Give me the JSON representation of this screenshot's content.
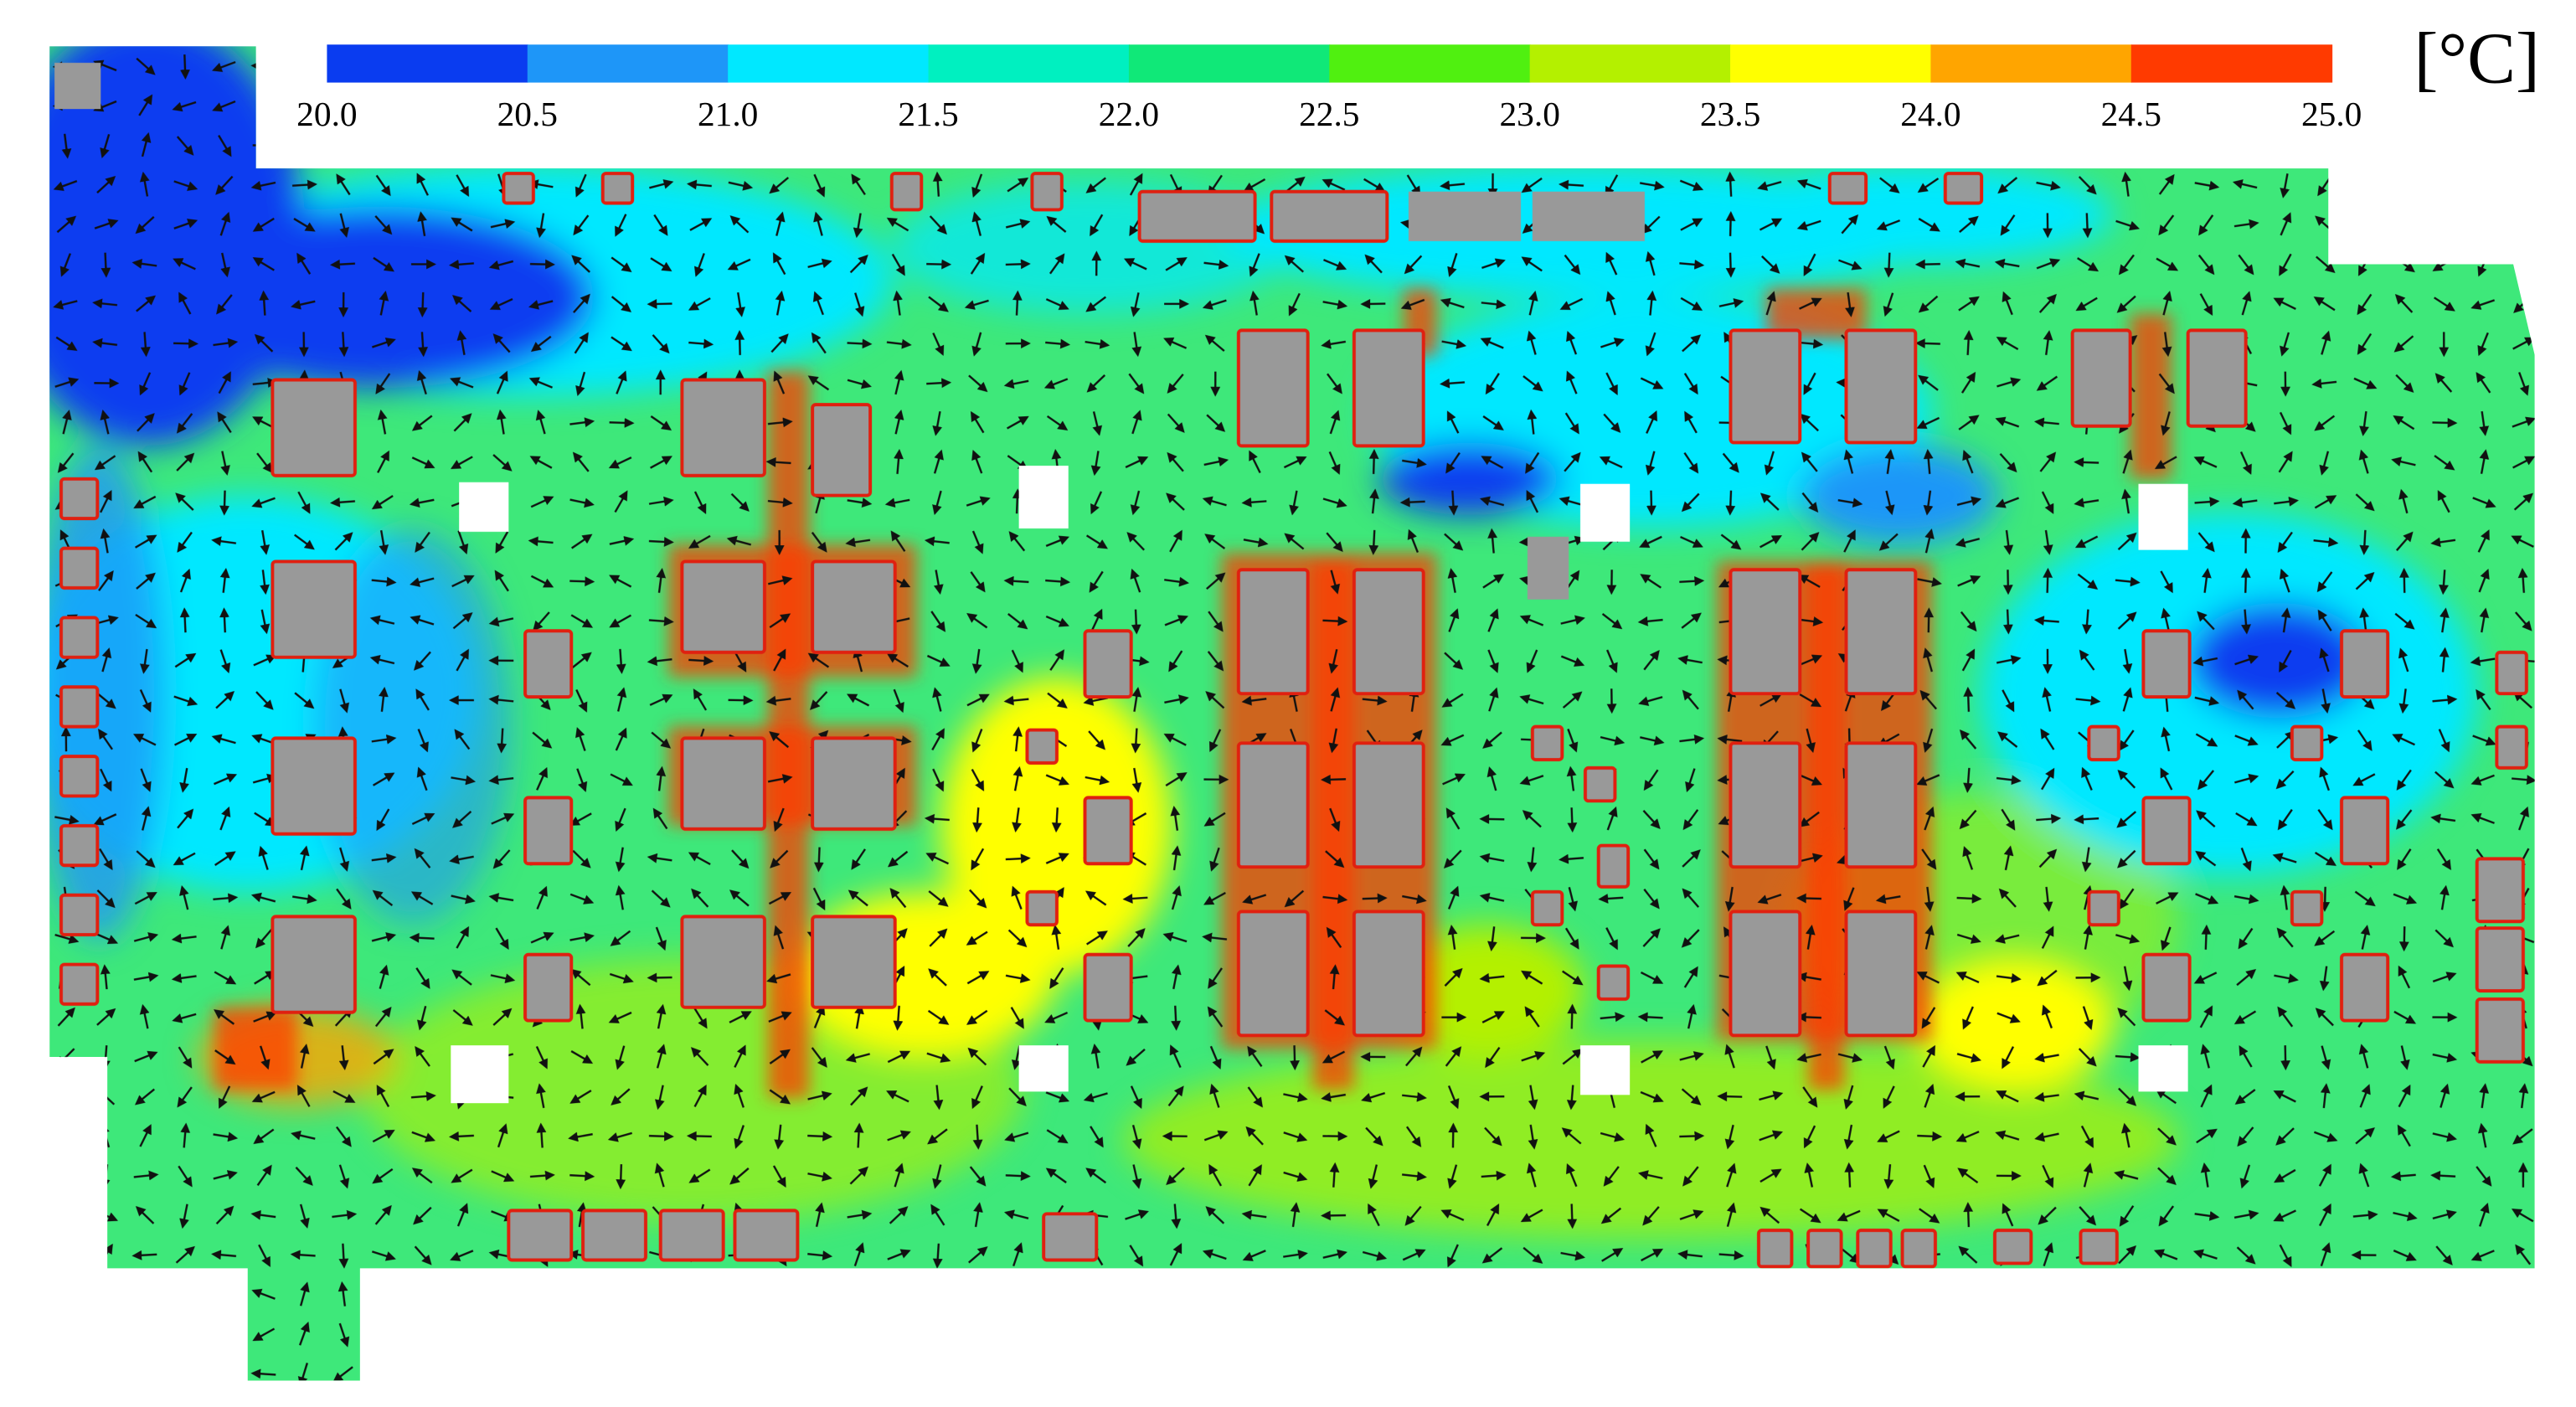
{
  "chart_data": {
    "type": "heatmap",
    "colorbar_label": "[°C]",
    "xlim": [
      20,
      25
    ],
    "xticks": [
      {
        "value": 20,
        "label": "20.0"
      },
      {
        "value": 20.5,
        "label": "20.5"
      },
      {
        "value": 21,
        "label": "21.0"
      },
      {
        "value": 21.5,
        "label": "21.5"
      },
      {
        "value": 22,
        "label": "22.0"
      },
      {
        "value": 22.5,
        "label": "22.5"
      },
      {
        "value": 23,
        "label": "23.0"
      },
      {
        "value": 23.5,
        "label": "23.5"
      },
      {
        "value": 24,
        "label": "24.0"
      },
      {
        "value": 24.5,
        "label": "24.5"
      },
      {
        "value": 25,
        "label": "25.0"
      }
    ],
    "colors": [
      "#0a3cf0",
      "#1e96f8",
      "#00e8ff",
      "#00f0c0",
      "#10e878",
      "#50f010",
      "#b4f000",
      "#ffff00",
      "#ffa500",
      "#ff3a00"
    ]
  }
}
